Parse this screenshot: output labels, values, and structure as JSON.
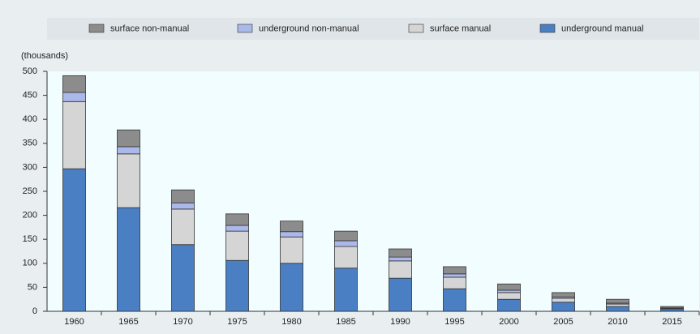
{
  "chart_data": {
    "type": "stacked_bar",
    "y_label": "(thousands)",
    "categories": [
      "1960",
      "1965",
      "1970",
      "1975",
      "1980",
      "1985",
      "1990",
      "1995",
      "2000",
      "2005",
      "2010",
      "2015"
    ],
    "series": [
      {
        "name": "surface non-manual",
        "color": "#8c8c8c",
        "values": [
          35,
          35,
          27,
          24,
          22,
          20,
          17,
          15,
          13,
          9,
          8,
          3
        ]
      },
      {
        "name": "underground non-manual",
        "color": "#aab8ea",
        "values": [
          19,
          15,
          13,
          12,
          11,
          12,
          8,
          7,
          5,
          3,
          2,
          1
        ]
      },
      {
        "name": "surface manual",
        "color": "#d5d5d5",
        "values": [
          140,
          112,
          74,
          61,
          55,
          45,
          36,
          24,
          14,
          8,
          5,
          2
        ]
      },
      {
        "name": "underground manual",
        "color": "#4a7fc3",
        "values": [
          297,
          216,
          139,
          106,
          100,
          90,
          69,
          47,
          25,
          19,
          10,
          4
        ]
      }
    ],
    "ylim": [
      0,
      500
    ],
    "yticks": [
      0,
      50,
      100,
      150,
      200,
      250,
      300,
      350,
      400,
      450,
      500
    ],
    "grid": false
  }
}
